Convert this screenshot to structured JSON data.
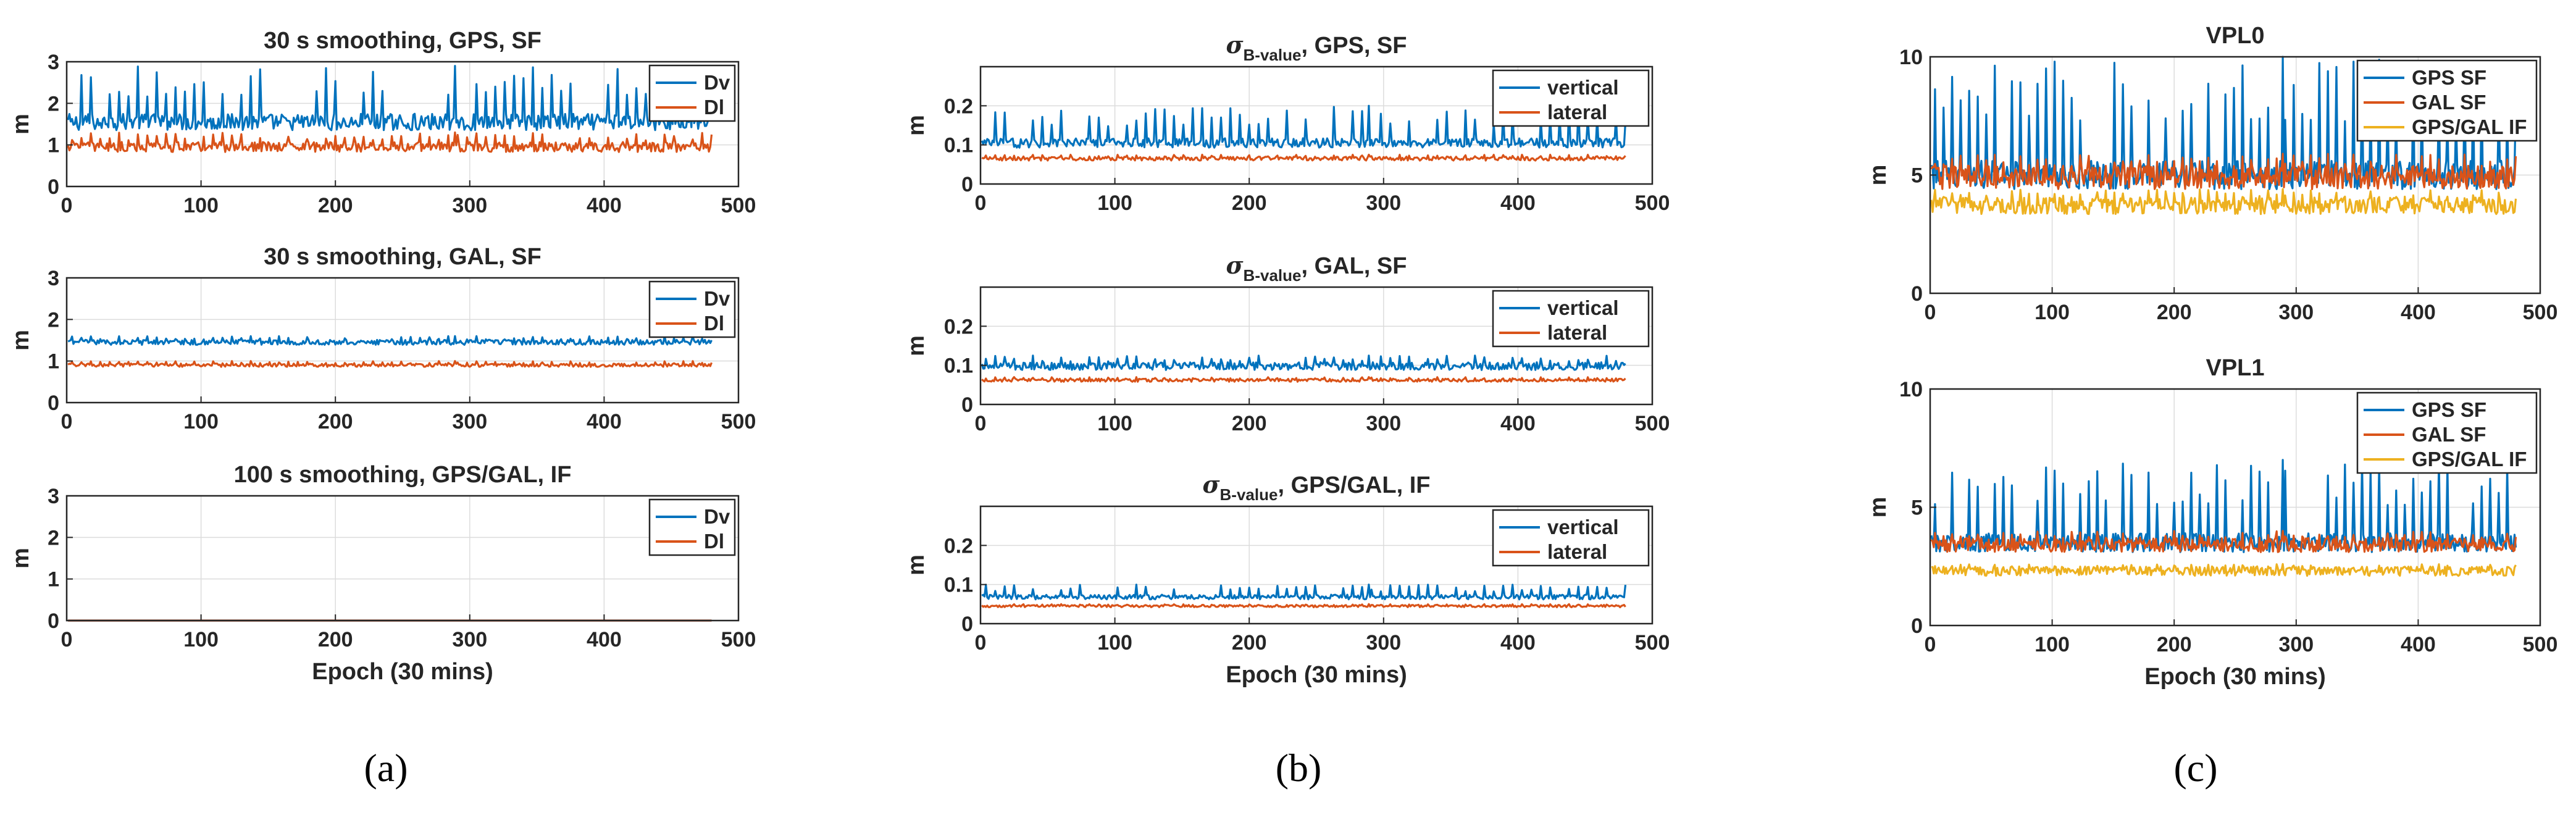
{
  "chart_data": [
    {
      "type": "line",
      "panel": "a",
      "title": "30 s smoothing, GPS, SF",
      "xlabel": "",
      "ylabel": "m",
      "xlim": [
        0,
        500
      ],
      "ylim": [
        0,
        3
      ],
      "xticks": [
        "0",
        "100",
        "200",
        "300",
        "400",
        "500"
      ],
      "yticks": [
        "0",
        "1",
        "2",
        "3"
      ],
      "legend": "top-right",
      "series": [
        {
          "name": "Dv",
          "color": "#0072BD",
          "n": 480,
          "mean": 1.55,
          "noise": 0.2,
          "spike_max": 2.9
        },
        {
          "name": "Dl",
          "color": "#D95319",
          "n": 480,
          "mean": 0.95,
          "noise": 0.12,
          "spike_max": 1.3
        }
      ]
    },
    {
      "type": "line",
      "panel": "a",
      "title": "30 s smoothing, GAL, SF",
      "xlabel": "",
      "ylabel": "m",
      "xlim": [
        0,
        500
      ],
      "ylim": [
        0,
        3
      ],
      "xticks": [
        "0",
        "100",
        "200",
        "300",
        "400",
        "500"
      ],
      "yticks": [
        "0",
        "1",
        "2",
        "3"
      ],
      "legend": "top-right",
      "series": [
        {
          "name": "Dv",
          "color": "#0072BD",
          "n": 480,
          "mean": 1.45,
          "noise": 0.06,
          "spike_max": 1.6
        },
        {
          "name": "Dl",
          "color": "#D95319",
          "n": 480,
          "mean": 0.9,
          "noise": 0.04,
          "spike_max": 1.0
        }
      ]
    },
    {
      "type": "line",
      "panel": "a",
      "title": "100 s smoothing, GPS/GAL, IF",
      "xlabel": "Epoch (30 mins)",
      "ylabel": "m",
      "xlim": [
        0,
        500
      ],
      "ylim": [
        0,
        3
      ],
      "xticks": [
        "0",
        "100",
        "200",
        "300",
        "400",
        "500"
      ],
      "yticks": [
        "0",
        "1",
        "2",
        "3"
      ],
      "legend": "top-right",
      "series": [
        {
          "name": "Dv",
          "color": "#0072BD",
          "n": 480,
          "mean": 0.0,
          "noise": 0.0,
          "spike_max": 0.0
        },
        {
          "name": "Dl",
          "color": "#D95319",
          "n": 480,
          "mean": 0.0,
          "noise": 0.0,
          "spike_max": 0.0
        }
      ]
    },
    {
      "type": "line",
      "panel": "b",
      "title": "σ",
      "title_sub": "B-value",
      "title_rest": ", GPS, SF",
      "xlabel": "",
      "ylabel": "m",
      "xlim": [
        0,
        500
      ],
      "ylim": [
        0,
        0.3
      ],
      "xticks": [
        "0",
        "100",
        "200",
        "300",
        "400",
        "500"
      ],
      "yticks": [
        "0",
        "0.1",
        "0.2"
      ],
      "legend": "top-right",
      "series": [
        {
          "name": "vertical",
          "color": "#0072BD",
          "n": 480,
          "mean": 0.105,
          "noise": 0.012,
          "spike_max": 0.2
        },
        {
          "name": "lateral",
          "color": "#D95319",
          "n": 480,
          "mean": 0.065,
          "noise": 0.005,
          "spike_max": 0.075
        }
      ]
    },
    {
      "type": "line",
      "panel": "b",
      "title": "σ",
      "title_sub": "B-value",
      "title_rest": ", GAL, SF",
      "xlabel": "",
      "ylabel": "m",
      "xlim": [
        0,
        500
      ],
      "ylim": [
        0,
        0.3
      ],
      "xticks": [
        "0",
        "100",
        "200",
        "300",
        "400",
        "500"
      ],
      "yticks": [
        "0",
        "0.1",
        "0.2"
      ],
      "legend": "top-right",
      "series": [
        {
          "name": "vertical",
          "color": "#0072BD",
          "n": 480,
          "mean": 0.098,
          "noise": 0.01,
          "spike_max": 0.125
        },
        {
          "name": "lateral",
          "color": "#D95319",
          "n": 480,
          "mean": 0.062,
          "noise": 0.004,
          "spike_max": 0.07
        }
      ]
    },
    {
      "type": "line",
      "panel": "b",
      "title": "σ",
      "title_sub": "B-value",
      "title_rest": ", GPS/GAL, IF",
      "xlabel": "Epoch (30 mins)",
      "ylabel": "m",
      "xlim": [
        0,
        500
      ],
      "ylim": [
        0,
        0.3
      ],
      "xticks": [
        "0",
        "100",
        "200",
        "300",
        "400",
        "500"
      ],
      "yticks": [
        "0",
        "0.1",
        "0.2"
      ],
      "legend": "top-right",
      "series": [
        {
          "name": "vertical",
          "color": "#0072BD",
          "n": 480,
          "mean": 0.068,
          "noise": 0.006,
          "spike_max": 0.1
        },
        {
          "name": "lateral",
          "color": "#D95319",
          "n": 480,
          "mean": 0.045,
          "noise": 0.003,
          "spike_max": 0.05
        }
      ]
    },
    {
      "type": "line",
      "panel": "c",
      "title": "VPL0",
      "xlabel": "",
      "ylabel": "m",
      "xlim": [
        0,
        500
      ],
      "ylim": [
        0,
        10
      ],
      "xticks": [
        "0",
        "100",
        "200",
        "300",
        "400",
        "500"
      ],
      "yticks": [
        "0",
        "5",
        "10"
      ],
      "legend": "top-right",
      "series": [
        {
          "name": "GPS SF",
          "color": "#0072BD",
          "n": 480,
          "mean": 5.0,
          "noise": 0.6,
          "spike_max": 10.0
        },
        {
          "name": "GAL SF",
          "color": "#D95319",
          "n": 480,
          "mean": 4.9,
          "noise": 0.5,
          "spike_max": 5.9
        },
        {
          "name": "GPS/GAL IF",
          "color": "#EDB120",
          "n": 480,
          "mean": 3.7,
          "noise": 0.35,
          "spike_max": 4.4
        }
      ]
    },
    {
      "type": "line",
      "panel": "c",
      "title": "VPL1",
      "xlabel": "Epoch (30 mins)",
      "ylabel": "m",
      "xlim": [
        0,
        500
      ],
      "ylim": [
        0,
        10
      ],
      "xticks": [
        "0",
        "100",
        "200",
        "300",
        "400",
        "500"
      ],
      "yticks": [
        "0",
        "5",
        "10"
      ],
      "legend": "top-right",
      "series": [
        {
          "name": "GPS SF",
          "color": "#0072BD",
          "n": 480,
          "mean": 3.5,
          "noise": 0.4,
          "spike_max": 7.0
        },
        {
          "name": "GAL SF",
          "color": "#D95319",
          "n": 480,
          "mean": 3.4,
          "noise": 0.3,
          "spike_max": 4.0
        },
        {
          "name": "GPS/GAL IF",
          "color": "#EDB120",
          "n": 480,
          "mean": 2.3,
          "noise": 0.2,
          "spike_max": 2.6
        }
      ]
    }
  ],
  "panel_labels": [
    "(a)",
    "(b)",
    "(c)"
  ]
}
